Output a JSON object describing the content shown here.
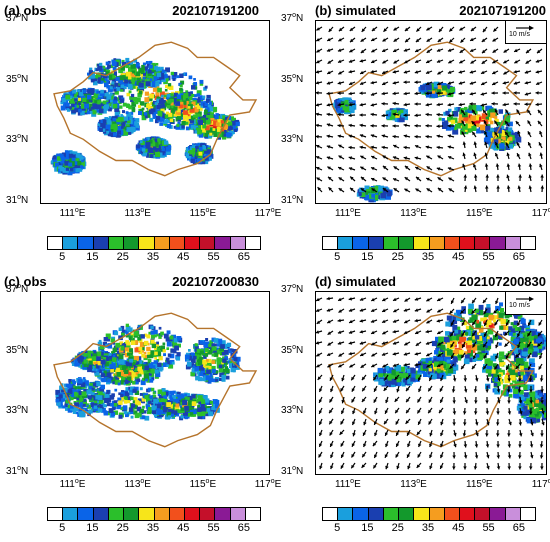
{
  "lat_ticks": [
    "37",
    "35",
    "33",
    "31"
  ],
  "lat_suffix": "N",
  "lon_ticks": [
    "111",
    "113",
    "115",
    "117"
  ],
  "lon_suffix": "E",
  "colorbar": {
    "ticks": [
      "5",
      "15",
      "25",
      "35",
      "45",
      "55",
      "65"
    ],
    "colors": [
      "#ffffff",
      "#1a9fdd",
      "#0a64e8",
      "#1a3fb0",
      "#2bbf2b",
      "#13992c",
      "#f7e51a",
      "#f59d1f",
      "#f2501c",
      "#e0101c",
      "#c4102a",
      "#8a1a95",
      "#c98fdb",
      "#ffffff"
    ]
  },
  "vector_ref": "10 m/s",
  "panels": {
    "a": {
      "label": "(a)  obs",
      "time": "202107191200"
    },
    "b": {
      "label": "(b)  simulated",
      "time": "202107191200"
    },
    "c": {
      "label": "(c)  obs",
      "time": "202107200830"
    },
    "d": {
      "label": "(d)  simulated",
      "time": "202107200830"
    }
  },
  "colors": {
    "boundary": "#b5742c",
    "frame": "#000000"
  }
}
